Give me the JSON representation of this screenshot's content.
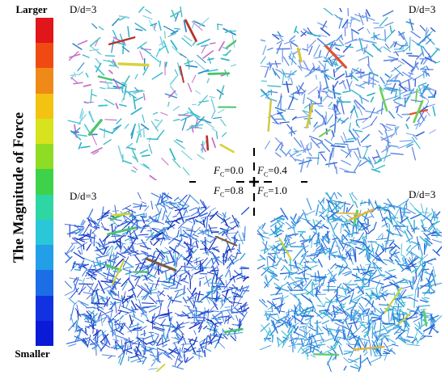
{
  "scale": {
    "top_label": "Larger",
    "bottom_label": "Smaller",
    "axis_title": "The Magnitude of  Force",
    "colors": [
      "#e0161a",
      "#f04a12",
      "#ef8a19",
      "#f3c312",
      "#d7e31c",
      "#8fdc24",
      "#3dd24a",
      "#2ed6a3",
      "#29c7d8",
      "#229fe8",
      "#1c6ee6",
      "#1232e2",
      "#0a1ad6"
    ]
  },
  "panels": [
    {
      "id": "top-left",
      "label": "D/d=3",
      "palette": [
        "#2fb5c9",
        "#3ac3cf",
        "#7fd1e0",
        "#c86fc7",
        "#2a86c8",
        "#50c0c0"
      ],
      "highlight": [
        "#4cc36b",
        "#d8d23a",
        "#b5322a"
      ]
    },
    {
      "id": "top-right",
      "label": "D/d=3",
      "palette": [
        "#3a5fd6",
        "#5b7fe0",
        "#2fb5c9",
        "#7e9cf0",
        "#3c8bd9",
        "#6fa5e8"
      ],
      "highlight": [
        "#6fcf5a",
        "#d4c93b",
        "#e0542a"
      ]
    },
    {
      "id": "bottom-left",
      "label": "D/d=3",
      "palette": [
        "#1f3fd0",
        "#2a55d8",
        "#3f73e0",
        "#1a2fb8",
        "#4a85e5",
        "#2d9bd2"
      ],
      "highlight": [
        "#4cc36b",
        "#c8d53a",
        "#7a5b3a"
      ]
    },
    {
      "id": "bottom-right",
      "label": "D/d=3",
      "palette": [
        "#2a8ed9",
        "#3aa7d8",
        "#2f6fdc",
        "#38c0d0",
        "#4aa0e8",
        "#2a5fd6"
      ],
      "highlight": [
        "#5dcf6a",
        "#c8d53a",
        "#e4b33a"
      ]
    }
  ],
  "legend": {
    "sym": "F",
    "sub": "C",
    "items": [
      {
        "value": "=0.0"
      },
      {
        "value": "=0.4"
      },
      {
        "value": "=0.8"
      },
      {
        "value": "=1.0"
      }
    ]
  }
}
